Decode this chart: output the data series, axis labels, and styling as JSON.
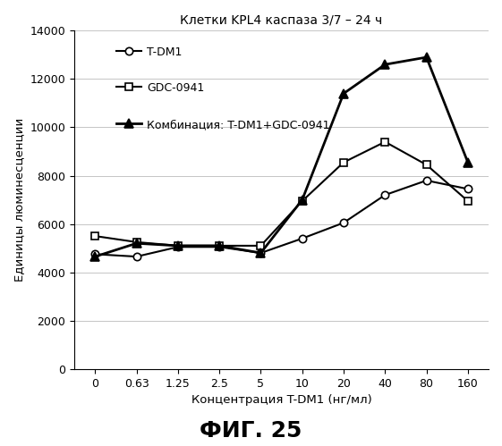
{
  "title": "Клетки KPL4 каспаза 3/7 – 24 ч",
  "xlabel": "Концентрация T-DM1 (нг/мл)",
  "ylabel": "Единицы люминесценции",
  "fig_label": "ФИГ. 25",
  "x_labels": [
    "0",
    "0.63",
    "1.25",
    "2.5",
    "5",
    "10",
    "20",
    "40",
    "80",
    "160"
  ],
  "series": [
    {
      "label": "T-DM1",
      "values": [
        4750,
        4650,
        5050,
        5050,
        4800,
        5400,
        6050,
        7200,
        7800,
        7450
      ],
      "color": "#000000",
      "marker": "o",
      "markersize": 6,
      "linewidth": 1.5,
      "markerfacecolor": "white",
      "zorder": 2
    },
    {
      "label": "GDC-0941",
      "values": [
        5500,
        5250,
        5100,
        5100,
        5100,
        6950,
        8550,
        9400,
        8450,
        6950
      ],
      "color": "#000000",
      "marker": "s",
      "markersize": 6,
      "linewidth": 1.5,
      "markerfacecolor": "white",
      "zorder": 2
    },
    {
      "label": "Комбинация: T-DM1+GDC-0941",
      "values": [
        4650,
        5200,
        5100,
        5100,
        4800,
        7000,
        11400,
        12600,
        12900,
        8550
      ],
      "color": "#000000",
      "marker": "^",
      "markersize": 7,
      "linewidth": 2.0,
      "markerfacecolor": "#000000",
      "zorder": 3
    }
  ],
  "ylim": [
    0,
    14000
  ],
  "yticks": [
    0,
    2000,
    4000,
    6000,
    8000,
    10000,
    12000,
    14000
  ],
  "background_color": "#ffffff",
  "title_fontsize": 10,
  "axis_label_fontsize": 9.5,
  "tick_fontsize": 9,
  "legend_fontsize": 9,
  "fig_label_fontsize": 18
}
